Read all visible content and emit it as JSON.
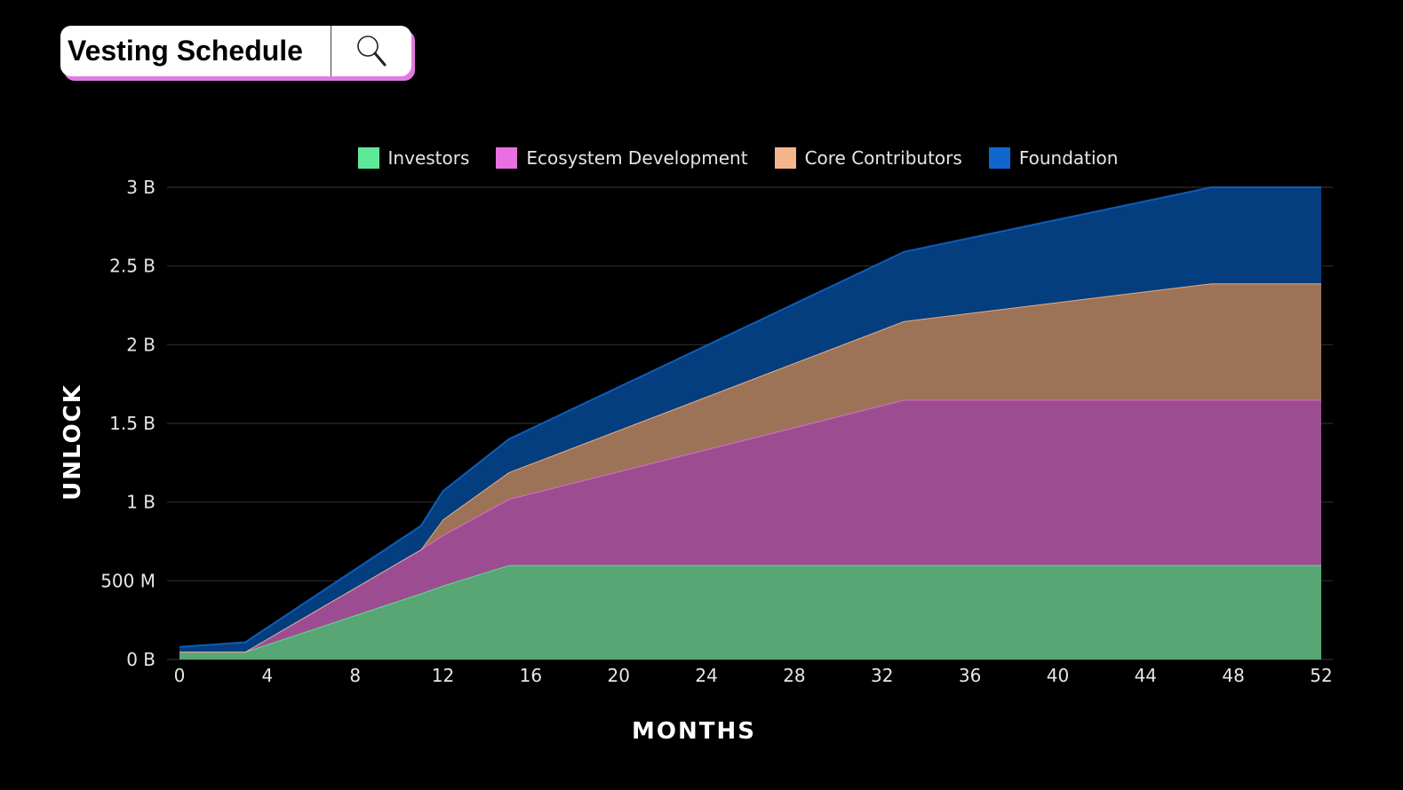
{
  "header": {
    "title": "Vesting Schedule",
    "search_icon": "magnifier"
  },
  "chart_data": {
    "type": "area",
    "stacked": true,
    "xlabel": "MONTHS",
    "ylabel": "UNLOCK",
    "xlim": [
      0,
      52
    ],
    "ylim": [
      0,
      3000000000
    ],
    "x_ticks": [
      0,
      4,
      8,
      12,
      16,
      20,
      24,
      28,
      32,
      36,
      40,
      44,
      48,
      52
    ],
    "y_ticks": [
      {
        "value": 0,
        "label": "0 B"
      },
      {
        "value": 500000000,
        "label": "500 M"
      },
      {
        "value": 1000000000,
        "label": "1 B"
      },
      {
        "value": 1500000000,
        "label": "1.5 B"
      },
      {
        "value": 2000000000,
        "label": "2 B"
      },
      {
        "value": 2500000000,
        "label": "2.5 B"
      },
      {
        "value": 3000000000,
        "label": "3 B"
      }
    ],
    "grid": true,
    "legend_position": "top",
    "x": [
      0,
      3,
      11,
      12,
      15,
      33,
      47,
      52
    ],
    "series": [
      {
        "name": "Investors",
        "color": "#5ee89a",
        "fill": "#58a674",
        "values": [
          50000000,
          50000000,
          420000000,
          470000000,
          600000000,
          600000000,
          600000000,
          600000000
        ]
      },
      {
        "name": "Ecosystem Development",
        "color": "#e870e0",
        "fill": "#9c4d91",
        "values": [
          0,
          0,
          280000000,
          320000000,
          420000000,
          1050000000,
          1050000000,
          1050000000
        ]
      },
      {
        "name": "Core Contributors",
        "color": "#f4b48c",
        "fill": "#9c7356",
        "values": [
          0,
          0,
          0,
          100000000,
          170000000,
          500000000,
          740000000,
          740000000
        ]
      },
      {
        "name": "Foundation",
        "color": "#1066cc",
        "fill": "#043e7e",
        "values": [
          30000000,
          60000000,
          150000000,
          180000000,
          210000000,
          440000000,
          610000000,
          610000000
        ]
      }
    ]
  }
}
